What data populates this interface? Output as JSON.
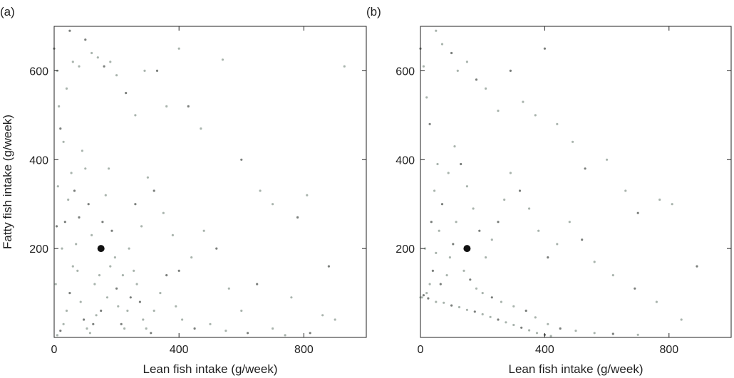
{
  "figure": {
    "colors": {
      "axis": "#222222",
      "point_light": "#a9b4ad",
      "point_dark": "#7b7f7c",
      "marker": "#111111"
    }
  },
  "chart_data": [
    {
      "type": "scatter",
      "panel_label": "(a)",
      "title": "",
      "xlabel": "Lean fish intake (g/week)",
      "ylabel": "Fatty fish intake (g/week)",
      "xlim": [
        0,
        1000
      ],
      "ylim": [
        0,
        700
      ],
      "xticks": [
        0,
        400,
        800
      ],
      "yticks": [
        200,
        400,
        600
      ],
      "grid": false,
      "highlight_point": {
        "x": 150,
        "y": 200
      },
      "series": [
        {
          "points": [
            [
              0,
              650
            ],
            [
              10,
              600
            ],
            [
              15,
              520
            ],
            [
              20,
              470
            ],
            [
              30,
              440
            ],
            [
              40,
              560
            ],
            [
              50,
              690
            ],
            [
              60,
              620
            ],
            [
              80,
              610
            ],
            [
              100,
              670
            ],
            [
              120,
              640
            ],
            [
              140,
              630
            ],
            [
              160,
              610
            ],
            [
              180,
              620
            ],
            [
              200,
              590
            ],
            [
              230,
              550
            ],
            [
              260,
              500
            ],
            [
              290,
              600
            ],
            [
              330,
              600
            ],
            [
              360,
              520
            ],
            [
              400,
              650
            ],
            [
              430,
              520
            ],
            [
              470,
              470
            ],
            [
              540,
              625
            ],
            [
              600,
              400
            ],
            [
              660,
              330
            ],
            [
              700,
              300
            ],
            [
              780,
              270
            ],
            [
              810,
              320
            ],
            [
              930,
              610
            ],
            [
              880,
              160
            ],
            [
              860,
              50
            ],
            [
              760,
              90
            ],
            [
              650,
              120
            ],
            [
              600,
              60
            ],
            [
              560,
              110
            ],
            [
              520,
              200
            ],
            [
              480,
              240
            ],
            [
              440,
              180
            ],
            [
              400,
              150
            ],
            [
              380,
              230
            ],
            [
              350,
              280
            ],
            [
              320,
              330
            ],
            [
              300,
              360
            ],
            [
              280,
              250
            ],
            [
              260,
              300
            ],
            [
              240,
              200
            ],
            [
              220,
              140
            ],
            [
              200,
              110
            ],
            [
              180,
              160
            ],
            [
              170,
              90
            ],
            [
              150,
              60
            ],
            [
              130,
              120
            ],
            [
              120,
              230
            ],
            [
              110,
              300
            ],
            [
              100,
              380
            ],
            [
              90,
              420
            ],
            [
              80,
              270
            ],
            [
              70,
              210
            ],
            [
              60,
              160
            ],
            [
              50,
              100
            ],
            [
              40,
              60
            ],
            [
              30,
              30
            ],
            [
              20,
              15
            ],
            [
              10,
              5
            ],
            [
              5,
              120
            ],
            [
              8,
              250
            ],
            [
              12,
              340
            ],
            [
              25,
              200
            ],
            [
              35,
              260
            ],
            [
              45,
              310
            ],
            [
              55,
              370
            ],
            [
              65,
              330
            ],
            [
              75,
              150
            ],
            [
              85,
              80
            ],
            [
              95,
              40
            ],
            [
              105,
              20
            ],
            [
              115,
              10
            ],
            [
              125,
              30
            ],
            [
              135,
              50
            ],
            [
              145,
              140
            ],
            [
              155,
              260
            ],
            [
              165,
              320
            ],
            [
              175,
              380
            ],
            [
              185,
              240
            ],
            [
              195,
              180
            ],
            [
              205,
              70
            ],
            [
              215,
              30
            ],
            [
              225,
              20
            ],
            [
              235,
              60
            ],
            [
              245,
              90
            ],
            [
              255,
              150
            ],
            [
              265,
              120
            ],
            [
              275,
              80
            ],
            [
              285,
              40
            ],
            [
              295,
              20
            ],
            [
              310,
              10
            ],
            [
              320,
              60
            ],
            [
              340,
              100
            ],
            [
              360,
              140
            ],
            [
              390,
              70
            ],
            [
              410,
              40
            ],
            [
              450,
              20
            ],
            [
              500,
              30
            ],
            [
              550,
              15
            ],
            [
              620,
              10
            ],
            [
              700,
              20
            ],
            [
              740,
              5
            ],
            [
              820,
              10
            ],
            [
              900,
              40
            ]
          ]
        }
      ]
    },
    {
      "type": "scatter",
      "panel_label": "(b)",
      "title": "",
      "xlabel": "Lean fish intake (g/week)",
      "ylabel": "",
      "xlim": [
        0,
        1000
      ],
      "ylim": [
        0,
        700
      ],
      "xticks": [
        0,
        400,
        800
      ],
      "yticks": [
        200,
        400,
        600
      ],
      "grid": false,
      "highlight_point": {
        "x": 150,
        "y": 200
      },
      "series": [
        {
          "points": [
            [
              0,
              650
            ],
            [
              10,
              610
            ],
            [
              20,
              540
            ],
            [
              30,
              480
            ],
            [
              50,
              690
            ],
            [
              70,
              660
            ],
            [
              100,
              640
            ],
            [
              120,
              600
            ],
            [
              150,
              620
            ],
            [
              180,
              580
            ],
            [
              210,
              560
            ],
            [
              250,
              510
            ],
            [
              290,
              600
            ],
            [
              330,
              530
            ],
            [
              370,
              500
            ],
            [
              400,
              650
            ],
            [
              440,
              480
            ],
            [
              490,
              440
            ],
            [
              530,
              380
            ],
            [
              600,
              400
            ],
            [
              660,
              330
            ],
            [
              700,
              280
            ],
            [
              770,
              310
            ],
            [
              810,
              300
            ],
            [
              890,
              160
            ],
            [
              840,
              40
            ],
            [
              760,
              80
            ],
            [
              690,
              110
            ],
            [
              620,
              140
            ],
            [
              560,
              170
            ],
            [
              520,
              220
            ],
            [
              480,
              260
            ],
            [
              440,
              210
            ],
            [
              410,
              180
            ],
            [
              380,
              240
            ],
            [
              350,
              290
            ],
            [
              320,
              330
            ],
            [
              290,
              370
            ],
            [
              270,
              310
            ],
            [
              250,
              260
            ],
            [
              230,
              220
            ],
            [
              210,
              180
            ],
            [
              190,
              240
            ],
            [
              170,
              290
            ],
            [
              150,
              340
            ],
            [
              130,
              390
            ],
            [
              110,
              430
            ],
            [
              90,
              370
            ],
            [
              70,
              300
            ],
            [
              60,
              240
            ],
            [
              50,
              190
            ],
            [
              40,
              150
            ],
            [
              30,
              120
            ],
            [
              20,
              100
            ],
            [
              10,
              95
            ],
            [
              5,
              90
            ],
            [
              0,
              90
            ],
            [
              25,
              88
            ],
            [
              50,
              80
            ],
            [
              75,
              78
            ],
            [
              100,
              72
            ],
            [
              125,
              68
            ],
            [
              150,
              62
            ],
            [
              175,
              58
            ],
            [
              200,
              52
            ],
            [
              225,
              46
            ],
            [
              250,
              40
            ],
            [
              275,
              34
            ],
            [
              300,
              28
            ],
            [
              325,
              22
            ],
            [
              350,
              16
            ],
            [
              375,
              10
            ],
            [
              400,
              6
            ],
            [
              420,
              3
            ],
            [
              15,
              200
            ],
            [
              35,
              260
            ],
            [
              45,
              330
            ],
            [
              55,
              390
            ],
            [
              65,
              120
            ],
            [
              85,
              140
            ],
            [
              95,
              180
            ],
            [
              105,
              210
            ],
            [
              115,
              260
            ],
            [
              140,
              150
            ],
            [
              160,
              130
            ],
            [
              180,
              110
            ],
            [
              200,
              100
            ],
            [
              230,
              90
            ],
            [
              260,
              80
            ],
            [
              300,
              70
            ],
            [
              340,
              60
            ],
            [
              370,
              45
            ],
            [
              410,
              30
            ],
            [
              450,
              20
            ],
            [
              500,
              15
            ],
            [
              560,
              10
            ],
            [
              620,
              8
            ],
            [
              700,
              6
            ]
          ]
        }
      ]
    }
  ]
}
